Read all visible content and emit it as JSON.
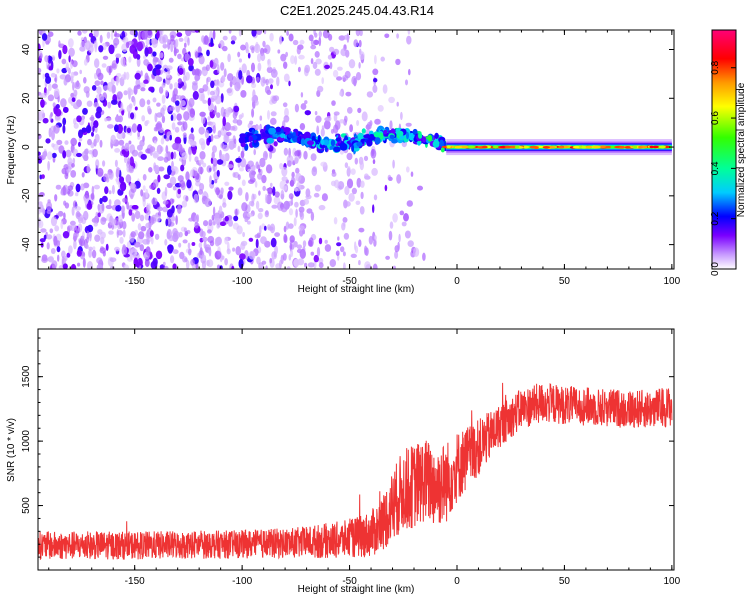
{
  "title": "C2E1.2025.245.04.43.R14",
  "chart_data": [
    {
      "type": "heatmap",
      "name": "spectrogram",
      "xlabel": "Height of straight line (km)",
      "ylabel": "Frequency (Hz)",
      "xlim": [
        -195,
        101
      ],
      "ylim": [
        -50,
        48
      ],
      "x_ticks": [
        -150,
        -100,
        -50,
        0,
        50,
        100
      ],
      "y_ticks": [
        -40,
        -20,
        0,
        20,
        40
      ],
      "colorbar": {
        "label": "Normalized spectral amplitude",
        "range": [
          0.0,
          0.95
        ],
        "ticks": [
          0.0,
          0.2,
          0.4,
          0.6,
          0.8
        ],
        "colors": [
          "#ffffff",
          "#c89bff",
          "#7a00ff",
          "#0000ff",
          "#00ccff",
          "#00ff99",
          "#33ff00",
          "#ffff00",
          "#ff9900",
          "#ff0000",
          "#ff0077"
        ]
      },
      "features": [
        {
          "description": "scattered low-amplitude noise",
          "x_range": [
            -195,
            -35
          ],
          "freq_range": [
            -50,
            48
          ],
          "amplitude": 0.1
        },
        {
          "description": "emerging carrier band",
          "x_range": [
            -100,
            -5
          ],
          "freq_center": 3,
          "amplitude": 0.3
        },
        {
          "description": "steady carrier at 0 Hz",
          "x_range": [
            -5,
            100
          ],
          "freq_center": 0,
          "amplitude": 0.85
        }
      ]
    },
    {
      "type": "line",
      "name": "snr",
      "xlabel": "Height of straight line (km)",
      "ylabel": "SNR (10 * v/v)",
      "xlim": [
        -195,
        101
      ],
      "ylim": [
        0,
        1870
      ],
      "x_ticks": [
        -150,
        -100,
        -50,
        0,
        50,
        100
      ],
      "y_ticks": [
        500,
        1000,
        1500
      ],
      "color": "#ee3333",
      "series": [
        {
          "name": "SNR",
          "x": [
            -195,
            -150,
            -100,
            -75,
            -50,
            -40,
            -35,
            -30,
            -25,
            -20,
            -15,
            -10,
            -5,
            0,
            10,
            20,
            30,
            40,
            50,
            60,
            70,
            80,
            90,
            100
          ],
          "y": [
            190,
            190,
            200,
            210,
            240,
            280,
            350,
            500,
            620,
            650,
            700,
            650,
            680,
            800,
            950,
            1120,
            1250,
            1300,
            1280,
            1270,
            1260,
            1250,
            1250,
            1270
          ],
          "noise": [
            110,
            110,
            110,
            120,
            150,
            180,
            220,
            280,
            320,
            330,
            330,
            330,
            320,
            280,
            220,
            170,
            160,
            160,
            150,
            150,
            150,
            150,
            150,
            160
          ]
        }
      ]
    }
  ]
}
